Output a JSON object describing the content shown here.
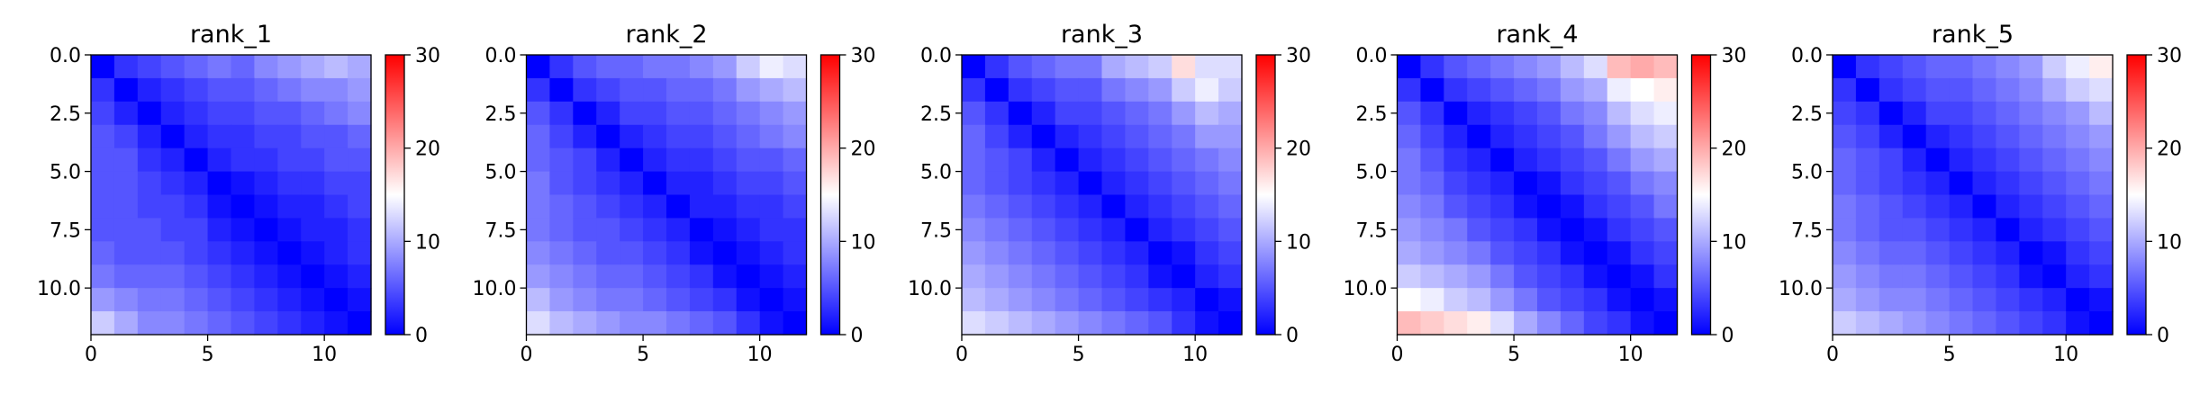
{
  "chart_data": [
    {
      "type": "heatmap",
      "title": "rank_1",
      "colormap": "bwr",
      "vmin": 0,
      "vmax": 30,
      "colorbar_ticks": [
        0,
        10,
        20,
        30
      ],
      "x_ticks": [
        0,
        5,
        10
      ],
      "y_ticks": [
        "0.0",
        "2.5",
        "5.0",
        "7.5",
        "10.0"
      ],
      "xlim": [
        0,
        12
      ],
      "ylim": [
        12,
        0
      ],
      "values": [
        [
          0,
          3,
          4,
          5,
          6,
          7,
          6,
          8,
          9,
          10,
          11,
          10
        ],
        [
          3,
          0,
          2,
          3,
          4,
          5,
          5,
          6,
          7,
          8,
          8,
          9
        ],
        [
          4,
          2,
          0,
          2,
          3,
          4,
          4,
          5,
          5,
          6,
          7,
          8
        ],
        [
          5,
          4,
          2,
          0,
          2,
          3,
          3,
          4,
          4,
          5,
          5,
          6
        ],
        [
          5,
          5,
          3,
          2,
          0,
          2,
          3,
          3,
          4,
          4,
          5,
          5
        ],
        [
          5,
          5,
          4,
          3,
          2,
          0,
          1,
          2,
          3,
          3,
          4,
          4
        ],
        [
          5,
          5,
          4,
          4,
          3,
          1,
          0,
          1,
          2,
          2,
          3,
          4
        ],
        [
          5,
          5,
          5,
          4,
          4,
          2,
          1,
          0,
          1,
          2,
          2,
          3
        ],
        [
          6,
          5,
          5,
          5,
          4,
          3,
          2,
          1,
          0,
          1,
          2,
          3
        ],
        [
          7,
          6,
          6,
          6,
          5,
          4,
          3,
          2,
          1,
          0,
          1,
          2
        ],
        [
          9,
          8,
          7,
          7,
          6,
          5,
          4,
          3,
          2,
          1,
          0,
          1
        ],
        [
          12,
          10,
          8,
          8,
          7,
          6,
          5,
          4,
          3,
          2,
          1,
          0
        ]
      ]
    },
    {
      "type": "heatmap",
      "title": "rank_2",
      "colormap": "bwr",
      "vmin": 0,
      "vmax": 30,
      "colorbar_ticks": [
        0,
        10,
        20,
        30
      ],
      "x_ticks": [
        0,
        5,
        10
      ],
      "y_ticks": [
        "0.0",
        "2.5",
        "5.0",
        "7.5",
        "10.0"
      ],
      "xlim": [
        0,
        12
      ],
      "ylim": [
        12,
        0
      ],
      "values": [
        [
          0,
          3,
          5,
          6,
          6,
          7,
          7,
          8,
          9,
          12,
          14,
          13
        ],
        [
          3,
          0,
          3,
          4,
          5,
          5,
          6,
          6,
          7,
          9,
          10,
          11
        ],
        [
          5,
          3,
          0,
          2,
          4,
          4,
          5,
          5,
          6,
          7,
          8,
          9
        ],
        [
          6,
          4,
          2,
          0,
          2,
          3,
          4,
          4,
          5,
          6,
          7,
          8
        ],
        [
          6,
          5,
          4,
          2,
          0,
          2,
          3,
          3,
          4,
          5,
          5,
          6
        ],
        [
          7,
          5,
          4,
          3,
          2,
          0,
          2,
          2,
          3,
          4,
          4,
          5
        ],
        [
          7,
          6,
          5,
          4,
          3,
          2,
          0,
          2,
          2,
          3,
          3,
          4
        ],
        [
          7,
          6,
          5,
          5,
          4,
          3,
          2,
          0,
          1,
          2,
          3,
          3
        ],
        [
          8,
          7,
          6,
          5,
          5,
          4,
          3,
          1,
          0,
          1,
          2,
          3
        ],
        [
          9,
          8,
          7,
          6,
          6,
          5,
          4,
          3,
          1,
          0,
          1,
          2
        ],
        [
          11,
          9,
          8,
          7,
          7,
          6,
          5,
          4,
          3,
          1,
          0,
          1
        ],
        [
          13,
          11,
          10,
          9,
          8,
          8,
          7,
          6,
          5,
          3,
          1,
          0
        ]
      ]
    },
    {
      "type": "heatmap",
      "title": "rank_3",
      "colormap": "bwr",
      "vmin": 0,
      "vmax": 30,
      "colorbar_ticks": [
        0,
        10,
        20,
        30
      ],
      "x_ticks": [
        0,
        5,
        10
      ],
      "y_ticks": [
        "0.0",
        "2.5",
        "5.0",
        "7.5",
        "10.0"
      ],
      "xlim": [
        0,
        12
      ],
      "ylim": [
        12,
        0
      ],
      "values": [
        [
          0,
          3,
          5,
          6,
          7,
          7,
          10,
          11,
          12,
          17,
          13,
          13
        ],
        [
          3,
          0,
          3,
          4,
          5,
          5,
          7,
          8,
          9,
          12,
          14,
          12
        ],
        [
          5,
          3,
          0,
          2,
          4,
          4,
          5,
          6,
          7,
          9,
          11,
          10
        ],
        [
          6,
          4,
          2,
          0,
          2,
          3,
          4,
          5,
          6,
          7,
          9,
          9
        ],
        [
          6,
          5,
          4,
          2,
          0,
          2,
          3,
          4,
          5,
          6,
          7,
          8
        ],
        [
          6,
          5,
          4,
          3,
          2,
          0,
          2,
          3,
          4,
          5,
          6,
          7
        ],
        [
          7,
          6,
          5,
          4,
          3,
          2,
          0,
          2,
          3,
          4,
          5,
          6
        ],
        [
          8,
          7,
          6,
          5,
          4,
          3,
          2,
          0,
          2,
          3,
          4,
          5
        ],
        [
          9,
          8,
          7,
          6,
          5,
          4,
          3,
          2,
          0,
          1,
          3,
          4
        ],
        [
          10,
          9,
          8,
          7,
          6,
          5,
          4,
          3,
          1,
          0,
          2,
          3
        ],
        [
          11,
          10,
          9,
          8,
          7,
          6,
          5,
          4,
          3,
          2,
          0,
          1
        ],
        [
          13,
          12,
          11,
          10,
          9,
          8,
          7,
          6,
          5,
          3,
          1,
          0
        ]
      ]
    },
    {
      "type": "heatmap",
      "title": "rank_4",
      "colormap": "bwr",
      "vmin": 0,
      "vmax": 30,
      "colorbar_ticks": [
        0,
        10,
        20,
        30
      ],
      "x_ticks": [
        0,
        5,
        10
      ],
      "y_ticks": [
        "0.0",
        "2.5",
        "5.0",
        "7.5",
        "10.0"
      ],
      "xlim": [
        0,
        12
      ],
      "ylim": [
        12,
        0
      ],
      "values": [
        [
          0,
          3,
          5,
          6,
          7,
          8,
          9,
          11,
          13,
          19,
          20,
          19
        ],
        [
          3,
          0,
          3,
          4,
          5,
          6,
          7,
          9,
          10,
          14,
          15,
          16
        ],
        [
          5,
          3,
          0,
          2,
          3,
          4,
          5,
          7,
          8,
          11,
          13,
          14
        ],
        [
          6,
          4,
          2,
          0,
          2,
          3,
          4,
          5,
          7,
          9,
          11,
          12
        ],
        [
          7,
          5,
          3,
          2,
          0,
          2,
          3,
          4,
          5,
          7,
          9,
          10
        ],
        [
          7,
          6,
          4,
          3,
          2,
          0,
          1,
          3,
          4,
          5,
          7,
          8
        ],
        [
          8,
          7,
          5,
          4,
          3,
          1,
          0,
          1,
          3,
          4,
          5,
          7
        ],
        [
          9,
          8,
          7,
          5,
          4,
          3,
          1,
          0,
          1,
          3,
          4,
          5
        ],
        [
          10,
          9,
          8,
          7,
          5,
          4,
          3,
          1,
          0,
          1,
          3,
          4
        ],
        [
          12,
          11,
          10,
          9,
          7,
          5,
          4,
          3,
          1,
          0,
          1,
          3
        ],
        [
          15,
          14,
          12,
          11,
          9,
          7,
          5,
          4,
          3,
          1,
          0,
          1
        ],
        [
          19,
          18,
          17,
          16,
          13,
          10,
          8,
          6,
          4,
          3,
          1,
          0
        ]
      ]
    },
    {
      "type": "heatmap",
      "title": "rank_5",
      "colormap": "bwr",
      "vmin": 0,
      "vmax": 30,
      "colorbar_ticks": [
        0,
        10,
        20,
        30
      ],
      "x_ticks": [
        0,
        5,
        10
      ],
      "y_ticks": [
        "0.0",
        "2.5",
        "5.0",
        "7.5",
        "10.0"
      ],
      "xlim": [
        0,
        12
      ],
      "ylim": [
        12,
        0
      ],
      "values": [
        [
          0,
          3,
          4,
          5,
          6,
          6,
          7,
          8,
          9,
          12,
          14,
          16
        ],
        [
          3,
          0,
          3,
          4,
          5,
          5,
          6,
          7,
          8,
          10,
          12,
          13
        ],
        [
          4,
          3,
          0,
          2,
          4,
          4,
          5,
          6,
          7,
          8,
          9,
          11
        ],
        [
          5,
          4,
          2,
          0,
          2,
          3,
          4,
          5,
          6,
          7,
          8,
          9
        ],
        [
          6,
          5,
          4,
          2,
          0,
          2,
          3,
          4,
          5,
          6,
          7,
          8
        ],
        [
          6,
          5,
          4,
          3,
          2,
          0,
          2,
          3,
          4,
          5,
          6,
          7
        ],
        [
          7,
          6,
          5,
          4,
          3,
          2,
          0,
          2,
          3,
          4,
          5,
          6
        ],
        [
          7,
          6,
          5,
          5,
          4,
          3,
          2,
          0,
          2,
          3,
          4,
          5
        ],
        [
          8,
          7,
          6,
          6,
          5,
          4,
          3,
          2,
          0,
          1,
          3,
          4
        ],
        [
          9,
          8,
          7,
          7,
          6,
          5,
          4,
          3,
          1,
          0,
          2,
          3
        ],
        [
          10,
          9,
          8,
          8,
          7,
          6,
          5,
          4,
          3,
          2,
          0,
          1
        ],
        [
          12,
          11,
          10,
          9,
          8,
          7,
          6,
          5,
          4,
          3,
          1,
          0
        ]
      ]
    }
  ]
}
